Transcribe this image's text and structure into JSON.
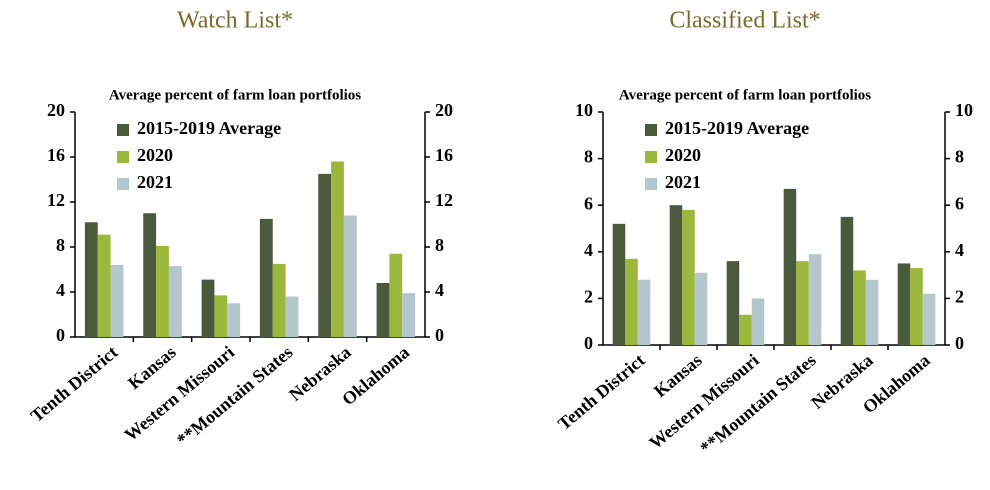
{
  "chart_data": [
    {
      "type": "bar",
      "title": "Watch List*",
      "subtitle": "Average percent of farm loan portfolios",
      "categories": [
        "Tenth District",
        "Kansas",
        "Western Missouri",
        "**Mountain States",
        "Nebraska",
        "Oklahoma"
      ],
      "series": [
        {
          "name": "2015-2019 Average",
          "color": "#4b5a3d",
          "values": [
            10.2,
            11.0,
            5.1,
            10.5,
            14.5,
            4.8
          ]
        },
        {
          "name": "2020",
          "color": "#9bb83c",
          "values": [
            9.1,
            8.1,
            3.7,
            6.5,
            15.6,
            7.4
          ]
        },
        {
          "name": "2021",
          "color": "#b5c7cd",
          "values": [
            6.4,
            6.3,
            3.0,
            3.6,
            10.8,
            3.9
          ]
        }
      ],
      "ylim": [
        0,
        20
      ],
      "yticks": [
        0,
        4,
        8,
        12,
        16,
        20
      ],
      "y2lim": [
        0,
        20
      ],
      "y2ticks": [
        0,
        4,
        8,
        12,
        16,
        20
      ],
      "grid": false,
      "legend": "top-left"
    },
    {
      "type": "bar",
      "title": "Classified List*",
      "subtitle": "Average percent of farm loan portfolios",
      "categories": [
        "Tenth District",
        "Kansas",
        "Western Missouri",
        "**Mountain States",
        "Nebraska",
        "Oklahoma"
      ],
      "series": [
        {
          "name": "2015-2019 Average",
          "color": "#4b5a3d",
          "values": [
            5.2,
            6.0,
            3.6,
            6.7,
            5.5,
            3.5
          ]
        },
        {
          "name": "2020",
          "color": "#9bb83c",
          "values": [
            3.7,
            5.8,
            1.3,
            3.6,
            3.2,
            3.3
          ]
        },
        {
          "name": "2021",
          "color": "#b5c7cd",
          "values": [
            2.8,
            3.1,
            2.0,
            3.9,
            2.8,
            2.2
          ]
        }
      ],
      "ylim": [
        0,
        10
      ],
      "yticks": [
        0,
        2,
        4,
        6,
        8,
        10
      ],
      "y2lim": [
        0,
        10
      ],
      "y2ticks": [
        0,
        2,
        4,
        6,
        8,
        10
      ],
      "grid": false,
      "legend": "top-left"
    }
  ]
}
